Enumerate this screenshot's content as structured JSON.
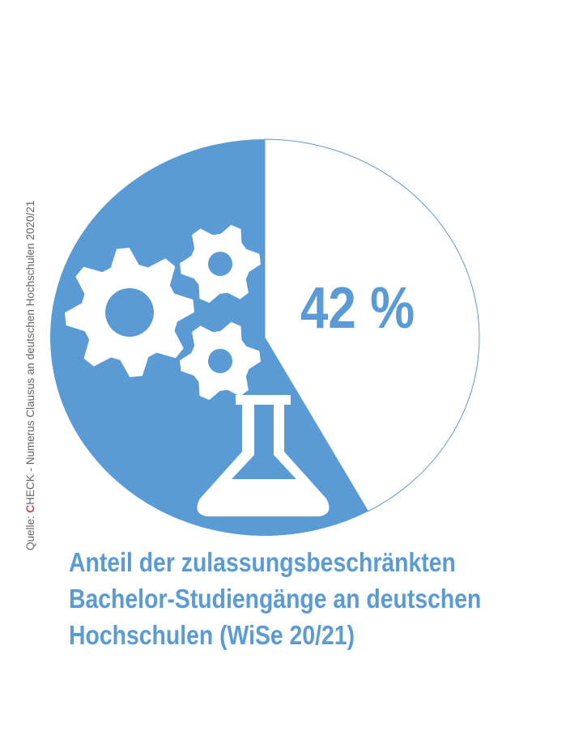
{
  "chart_data": {
    "type": "pie",
    "slices": [
      {
        "label": "zulassungsbeschränkt",
        "value": 42,
        "color": "#ffffff",
        "data_label": "42 %"
      },
      {
        "label": "",
        "value": 58,
        "color": "#5b9bd5"
      }
    ],
    "title_lines": [
      "Anteil der zulassungsbeschränkten",
      "Bachelor-Studiengänge an deutschen",
      "Hochschulen (WiSe 20/21)"
    ],
    "outline_color": "#5b9bd5"
  },
  "source": {
    "prefix": "Quelle: ",
    "highlight": "C",
    "rest": "HECK - Numerus Clausus an deutschen Hochschulen  2020/21",
    "highlight_color": "#e00000"
  },
  "icons": [
    "gear-icon",
    "gear-icon",
    "gear-icon",
    "flask-icon"
  ]
}
